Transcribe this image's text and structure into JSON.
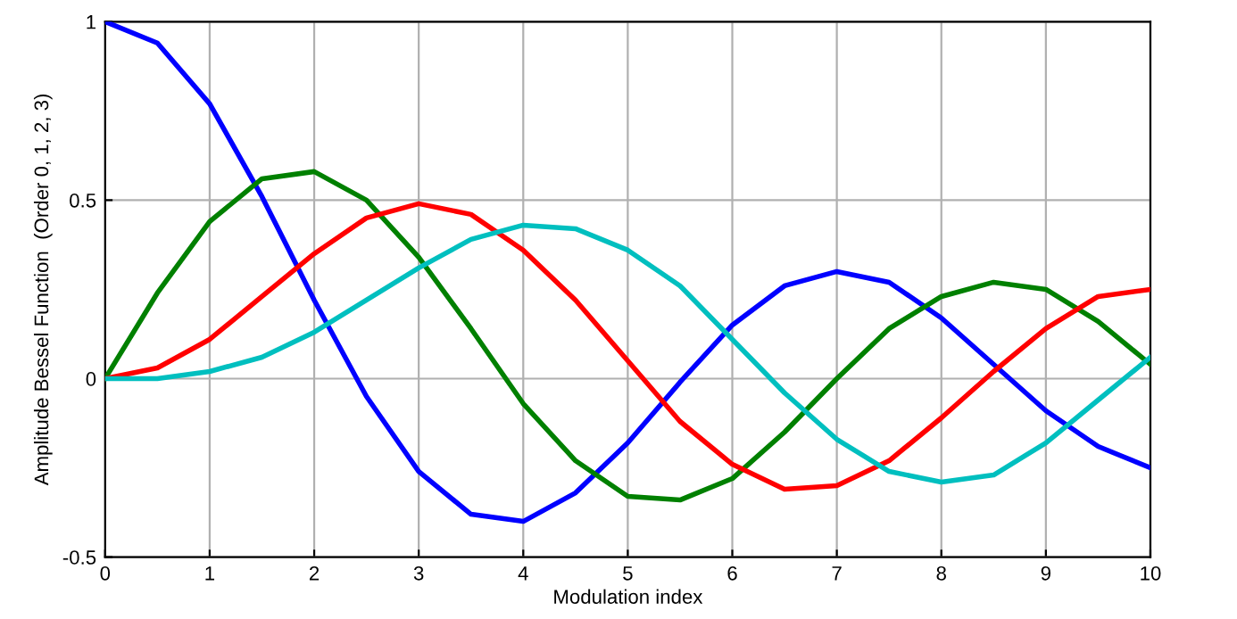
{
  "chart_data": {
    "type": "line",
    "xlabel": "Modulation index",
    "ylabel": "Amplitude Bessel Function  (Order 0, 1, 2, 3)",
    "x": [
      0,
      0.5,
      1,
      1.5,
      2,
      2.5,
      3,
      3.5,
      4,
      4.5,
      5,
      5.5,
      6,
      6.5,
      7,
      7.5,
      8,
      8.5,
      9,
      9.5,
      10
    ],
    "series": [
      {
        "color": "#0000ff",
        "values": [
          1,
          0.94,
          0.77,
          0.51,
          0.22,
          -0.05,
          -0.26,
          -0.38,
          -0.4,
          -0.32,
          -0.18,
          -0.01,
          0.15,
          0.26,
          0.3,
          0.27,
          0.17,
          0.04,
          -0.09,
          -0.19,
          -0.25
        ]
      },
      {
        "color": "#008000",
        "values": [
          0,
          0.24,
          0.44,
          0.56,
          0.58,
          0.5,
          0.34,
          0.14,
          -0.07,
          -0.23,
          -0.33,
          -0.34,
          -0.28,
          -0.15,
          0,
          0.14,
          0.23,
          0.27,
          0.25,
          0.16,
          0.04
        ]
      },
      {
        "color": "#ff0000",
        "values": [
          0,
          0.03,
          0.11,
          0.23,
          0.35,
          0.45,
          0.49,
          0.46,
          0.36,
          0.22,
          0.05,
          -0.12,
          -0.24,
          -0.31,
          -0.3,
          -0.23,
          -0.11,
          0.02,
          0.14,
          0.23,
          0.25
        ]
      },
      {
        "color": "#00bfbf",
        "values": [
          0,
          0,
          0.02,
          0.06,
          0.13,
          0.22,
          0.31,
          0.39,
          0.43,
          0.42,
          0.36,
          0.26,
          0.11,
          -0.04,
          -0.17,
          -0.26,
          -0.29,
          -0.27,
          -0.18,
          -0.06,
          0.06
        ]
      }
    ],
    "xlim": [
      0,
      10
    ],
    "xticks": [
      0,
      1,
      2,
      3,
      4,
      5,
      6,
      7,
      8,
      9,
      10
    ],
    "ylim": [
      -0.5,
      1
    ],
    "yticks": [
      -0.5,
      0,
      0.5,
      1
    ],
    "grid": true,
    "line_style": "solid",
    "marker": "none"
  }
}
